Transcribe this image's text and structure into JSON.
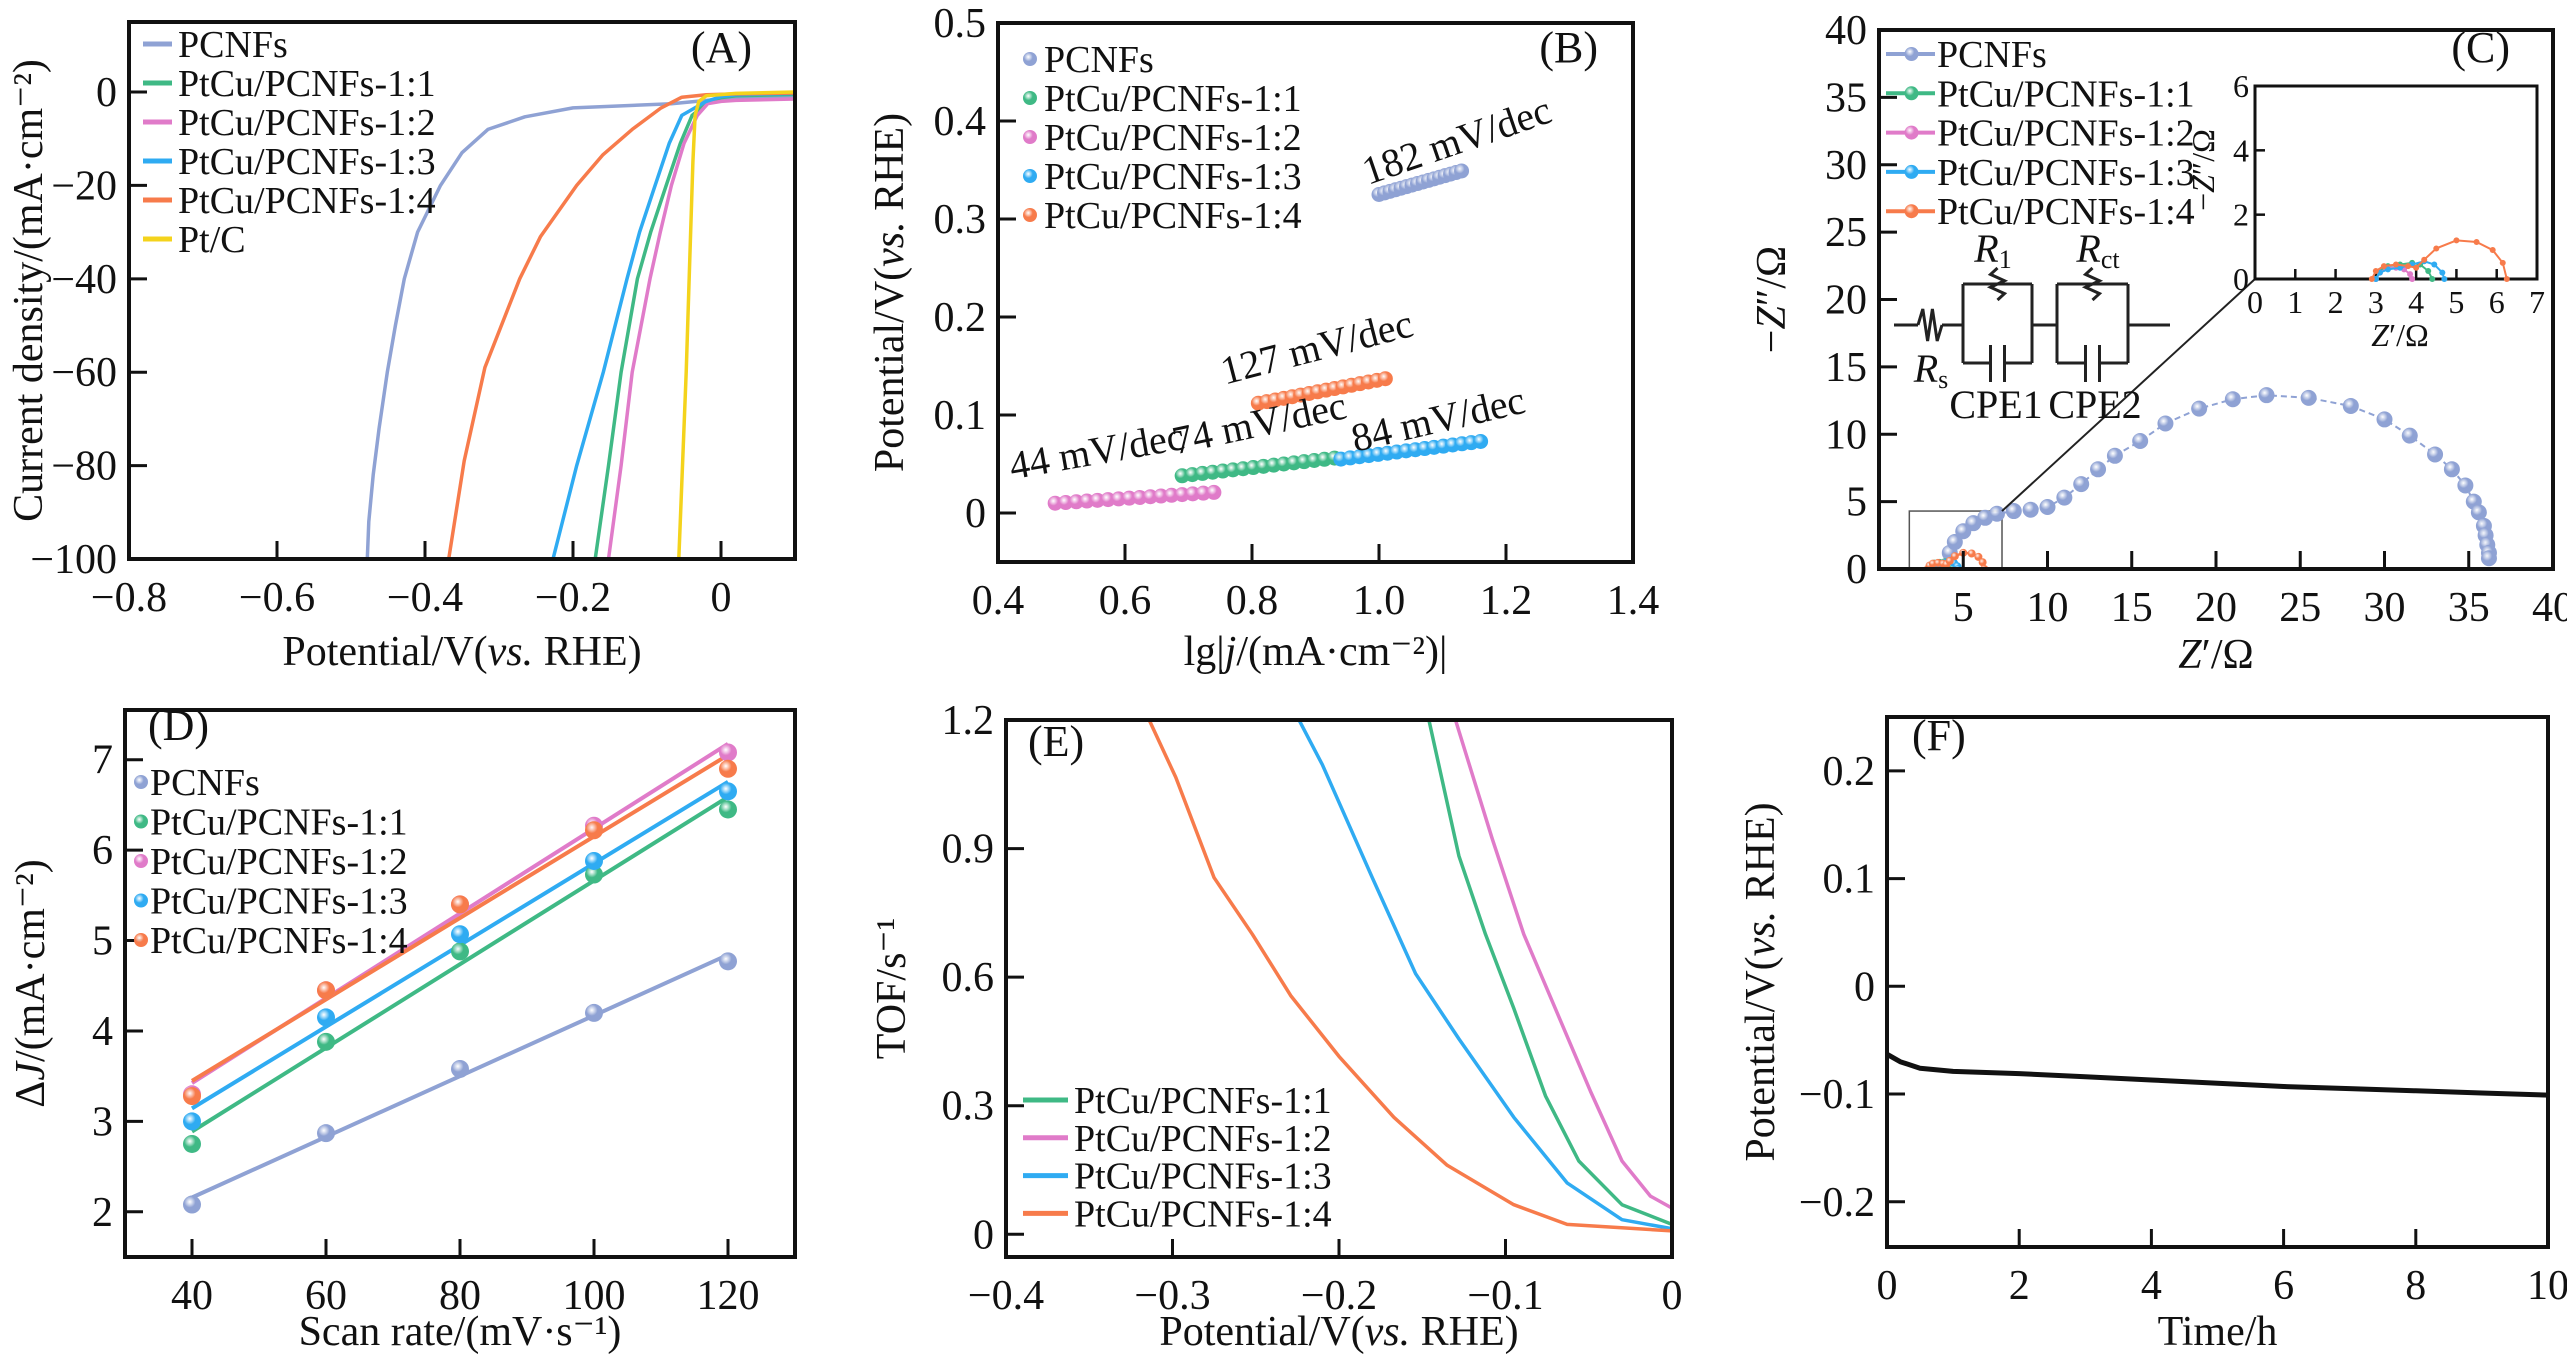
{
  "colors": {
    "PCNFs": "#8fa2d4",
    "PtCu/PCNFs-1:1": "#3fb985",
    "PtCu/PCNFs-1:2": "#e07bc9",
    "PtCu/PCNFs-1:3": "#2fabf2",
    "PtCu/PCNFs-1:4": "#f77b4b",
    "Pt/C": "#f4d31c"
  },
  "chart_data": [
    {
      "panel_label": "(A)",
      "type": "line",
      "xlabel": [
        {
          "t": "Potential/V("
        },
        {
          "t": "vs.",
          "i": true
        },
        {
          "t": " RHE)"
        }
      ],
      "ylabel": [
        {
          "t": "Current density/(mA·cm⁻²)"
        }
      ],
      "xlim": [
        -0.8,
        0.1
      ],
      "ylim": [
        -100,
        15
      ],
      "xticks": [
        -0.8,
        -0.6,
        -0.4,
        -0.2,
        0
      ],
      "xtick_labels": [
        "−0.8",
        "−0.6",
        "−0.4",
        "−0.2",
        "0"
      ],
      "yticks": [
        -100,
        -80,
        -60,
        -40,
        -20,
        0
      ],
      "ytick_labels": [
        "−100",
        "−80",
        "−60",
        "−40",
        "−20",
        "0"
      ],
      "legend": "top-left",
      "series": [
        {
          "name": "PCNFs",
          "color": "#8fa2d4",
          "x": [
            0.1,
            0,
            -0.067,
            -0.2,
            -0.265,
            -0.315,
            -0.35,
            -0.379,
            -0.41,
            -0.428,
            -0.44,
            -0.451,
            -0.462,
            -0.47,
            -0.476,
            -0.478
          ],
          "y": [
            -0.8,
            -1.5,
            -2.5,
            -3.4,
            -5.3,
            -8,
            -13,
            -20,
            -30,
            -40,
            -50,
            -60,
            -72,
            -82,
            -92,
            -100
          ]
        },
        {
          "name": "PtCu/PCNFs-1:1",
          "color": "#3fb985",
          "x": [
            0.1,
            0.02,
            0,
            -0.02,
            -0.039,
            -0.055,
            -0.074,
            -0.095,
            -0.113,
            -0.135,
            -0.152,
            -0.17
          ],
          "y": [
            -0.5,
            -0.8,
            -1.2,
            -2.5,
            -5,
            -11,
            -20,
            -30,
            -40,
            -60,
            -80,
            -100
          ]
        },
        {
          "name": "PtCu/PCNFs-1:2",
          "color": "#e07bc9",
          "x": [
            0.1,
            0.02,
            0,
            -0.018,
            -0.032,
            -0.05,
            -0.067,
            -0.082,
            -0.096,
            -0.12,
            -0.135,
            -0.152
          ],
          "y": [
            -1.5,
            -1.8,
            -2,
            -2.5,
            -5,
            -11,
            -20,
            -30,
            -40,
            -60,
            -80,
            -100
          ]
        },
        {
          "name": "PtCu/PCNFs-1:3",
          "color": "#2fabf2",
          "x": [
            0.1,
            0.02,
            0,
            -0.02,
            -0.053,
            -0.07,
            -0.089,
            -0.11,
            -0.127,
            -0.159,
            -0.195,
            -0.227
          ],
          "y": [
            -0.3,
            -0.6,
            -1,
            -2,
            -5,
            -11,
            -20,
            -30,
            -40,
            -60,
            -80,
            -100
          ]
        },
        {
          "name": "PtCu/PCNFs-1:4",
          "color": "#f77b4b",
          "x": [
            0.1,
            0.02,
            -0.02,
            -0.053,
            -0.081,
            -0.12,
            -0.16,
            -0.195,
            -0.244,
            -0.272,
            -0.319,
            -0.347,
            -0.368
          ],
          "y": [
            -0.2,
            -0.4,
            -0.6,
            -1.1,
            -3.4,
            -8,
            -13.5,
            -20,
            -31,
            -40,
            -59,
            -79,
            -100
          ]
        },
        {
          "name": "Pt/C",
          "color": "#f4d31c",
          "x": [
            0.1,
            0.02,
            -0.02,
            -0.03,
            -0.035,
            -0.038,
            -0.042,
            -0.047,
            -0.052,
            -0.057
          ],
          "y": [
            0,
            -0.3,
            -0.8,
            -2,
            -5,
            -15,
            -35,
            -60,
            -80,
            -100
          ]
        }
      ]
    },
    {
      "panel_label": "(B)",
      "type": "scatter",
      "xlabel": [
        {
          "t": "lg|"
        },
        {
          "t": "j",
          "i": true
        },
        {
          "t": "/(mA·cm⁻²)|"
        }
      ],
      "ylabel": [
        {
          "t": "Potential/V("
        },
        {
          "t": "vs.",
          "i": true
        },
        {
          "t": " RHE)"
        }
      ],
      "xlim": [
        0.4,
        1.4
      ],
      "ylim": [
        -0.05,
        0.5
      ],
      "xticks": [
        0.4,
        0.6,
        0.8,
        1.0,
        1.2,
        1.4
      ],
      "xtick_labels": [
        "0.4",
        "0.6",
        "0.8",
        "1.0",
        "1.2",
        "1.4"
      ],
      "yticks": [
        0,
        0.1,
        0.2,
        0.3,
        0.4,
        0.5
      ],
      "ytick_labels": [
        "0",
        "0.1",
        "0.2",
        "0.3",
        "0.4",
        "0.5"
      ],
      "legend": "top-left",
      "series": [
        {
          "name": "PCNFs",
          "color": "#8fa2d4",
          "x_range": [
            1.0,
            1.13
          ],
          "y_range": [
            0.325,
            0.349
          ],
          "annotation": "182 mV/dec"
        },
        {
          "name": "PtCu/PCNFs-1:1",
          "color": "#3fb985",
          "x_range": [
            0.69,
            0.93
          ],
          "y_range": [
            0.038,
            0.056
          ],
          "annotation": "74 mV/dec"
        },
        {
          "name": "PtCu/PCNFs-1:2",
          "color": "#e07bc9",
          "x_range": [
            0.49,
            0.74
          ],
          "y_range": [
            0.01,
            0.021
          ],
          "annotation": "44 mV/dec"
        },
        {
          "name": "PtCu/PCNFs-1:3",
          "color": "#2fabf2",
          "x_range": [
            0.94,
            1.16
          ],
          "y_range": [
            0.055,
            0.073
          ],
          "annotation": "84 mV/dec"
        },
        {
          "name": "PtCu/PCNFs-1:4",
          "color": "#f77b4b",
          "x_range": [
            0.81,
            1.01
          ],
          "y_range": [
            0.112,
            0.137
          ],
          "annotation": "127 mV/dec"
        }
      ]
    },
    {
      "panel_label": "(C)",
      "type": "scatter",
      "xlabel": [
        {
          "t": "Z",
          "i": true
        },
        {
          "t": "′/Ω"
        }
      ],
      "ylabel": [
        {
          "t": "−"
        },
        {
          "t": "Z",
          "i": true
        },
        {
          "t": "″/Ω"
        }
      ],
      "xlim": [
        0,
        40
      ],
      "ylim": [
        0,
        40
      ],
      "xticks": [
        5,
        10,
        15,
        20,
        25,
        30,
        35,
        40
      ],
      "xtick_labels": [
        "5",
        "10",
        "15",
        "20",
        "25",
        "30",
        "35",
        "40"
      ],
      "yticks": [
        0,
        5,
        10,
        15,
        20,
        25,
        30,
        35,
        40
      ],
      "ytick_labels": [
        "0",
        "5",
        "10",
        "15",
        "20",
        "25",
        "30",
        "35",
        "40"
      ],
      "legend": "top-left",
      "inset": {
        "xlim": [
          0,
          7
        ],
        "ylim": [
          0,
          6
        ],
        "xticks": [
          0,
          1,
          2,
          3,
          4,
          5,
          6,
          7
        ],
        "xtick_labels": [
          "0",
          "1",
          "2",
          "3",
          "4",
          "5",
          "6",
          "7"
        ],
        "yticks": [
          0,
          2,
          4,
          6
        ],
        "ytick_labels": [
          "0",
          "2",
          "4",
          "6"
        ],
        "xlabel": [
          {
            "t": "Z",
            "i": true
          },
          {
            "t": "′/Ω"
          }
        ],
        "ylabel": [
          {
            "t": "−"
          },
          {
            "t": "Z",
            "i": true
          },
          {
            "t": "″/Ω"
          }
        ],
        "zoom_region": {
          "x": [
            1.8,
            7.3
          ],
          "y": [
            0,
            4.3
          ]
        }
      },
      "circuit": {
        "rs": {
          "r": "R",
          "sub": "s"
        },
        "r1": {
          "r": "R",
          "sub": "1"
        },
        "rct": {
          "r": "R",
          "sub": "ct"
        },
        "cpe1": "CPE1",
        "cpe2": "CPE2"
      },
      "series": [
        {
          "name": "PCNFs",
          "color": "#8fa2d4",
          "x": [
            4.2,
            4.5,
            5,
            5.6,
            6.3,
            7,
            8,
            9,
            10,
            11,
            12,
            13,
            14,
            15.5,
            17,
            19,
            21,
            23,
            25.5,
            28,
            30,
            31.5,
            33,
            34,
            34.8,
            35.3,
            35.6,
            35.9,
            36,
            36.1,
            36.2,
            36.2
          ],
          "y": [
            1.2,
            2,
            2.8,
            3.4,
            3.8,
            4.1,
            4.3,
            4.4,
            4.6,
            5.3,
            6.3,
            7.4,
            8.4,
            9.5,
            10.8,
            11.9,
            12.6,
            12.9,
            12.7,
            12.1,
            11.1,
            9.9,
            8.5,
            7.4,
            6.2,
            5,
            4.2,
            3.2,
            2.5,
            1.8,
            1.2,
            0.8
          ]
        },
        {
          "name": "PtCu/PCNFs-1:1",
          "color": "#3fb985",
          "x": [
            3,
            3.1,
            3.3,
            3.6,
            3.9,
            4.1,
            4.3,
            4.4
          ],
          "y": [
            0,
            0.25,
            0.4,
            0.45,
            0.5,
            0.45,
            0.25,
            0
          ]
        },
        {
          "name": "PtCu/PCNFs-1:2",
          "color": "#e07bc9",
          "x": [
            3,
            3.1,
            3.3,
            3.5,
            3.7,
            3.85,
            3.9
          ],
          "y": [
            0,
            0.2,
            0.35,
            0.35,
            0.3,
            0.15,
            0
          ]
        },
        {
          "name": "PtCu/PCNFs-1:3",
          "color": "#2fabf2",
          "x": [
            3,
            3.1,
            3.3,
            3.6,
            3.9,
            4.2,
            4.45,
            4.65,
            4.7
          ],
          "y": [
            0,
            0.2,
            0.3,
            0.35,
            0.45,
            0.55,
            0.45,
            0.2,
            0
          ]
        },
        {
          "name": "PtCu/PCNFs-1:4",
          "color": "#f77b4b",
          "x": [
            2.9,
            3.0,
            3.2,
            3.5,
            3.8,
            4.0,
            4.2,
            4.5,
            5,
            5.5,
            5.9,
            6.15,
            6.25
          ],
          "y": [
            0,
            0.25,
            0.4,
            0.45,
            0.4,
            0.35,
            0.6,
            0.95,
            1.2,
            1.15,
            0.9,
            0.5,
            0
          ]
        }
      ]
    },
    {
      "panel_label": "(D)",
      "type": "scatter",
      "xlabel": [
        {
          "t": "Scan rate/(mV·s⁻¹)"
        }
      ],
      "ylabel": [
        {
          "t": "Δ"
        },
        {
          "t": "J",
          "i": true
        },
        {
          "t": "/(mA·cm⁻²)"
        }
      ],
      "xlim": [
        30,
        130
      ],
      "ylim": [
        1.5,
        7.55
      ],
      "xticks": [
        40,
        60,
        80,
        100,
        120
      ],
      "xtick_labels": [
        "40",
        "60",
        "80",
        "100",
        "120"
      ],
      "yticks": [
        2,
        3,
        4,
        5,
        6,
        7
      ],
      "ytick_labels": [
        "2",
        "3",
        "4",
        "5",
        "6",
        "7"
      ],
      "legend": "top-left",
      "linear_fit": true,
      "series": [
        {
          "name": "PCNFs",
          "color": "#8fa2d4",
          "x": [
            40,
            60,
            80,
            100,
            120
          ],
          "y": [
            2.08,
            2.87,
            3.58,
            4.2,
            4.77
          ]
        },
        {
          "name": "PtCu/PCNFs-1:1",
          "color": "#3fb985",
          "x": [
            40,
            60,
            80,
            100,
            120
          ],
          "y": [
            2.75,
            3.88,
            4.88,
            5.73,
            6.45
          ]
        },
        {
          "name": "PtCu/PCNFs-1:2",
          "color": "#e07bc9",
          "x": [
            40,
            60,
            80,
            100,
            120
          ],
          "y": [
            3.3,
            4.45,
            5.4,
            6.27,
            7.08
          ]
        },
        {
          "name": "PtCu/PCNFs-1:3",
          "color": "#2fabf2",
          "x": [
            40,
            60,
            80,
            100,
            120
          ],
          "y": [
            3.0,
            4.15,
            5.07,
            5.88,
            6.65
          ]
        },
        {
          "name": "PtCu/PCNFs-1:4",
          "color": "#f77b4b",
          "x": [
            40,
            60,
            80,
            100,
            120
          ],
          "y": [
            3.28,
            4.45,
            5.4,
            6.22,
            6.9
          ]
        }
      ]
    },
    {
      "panel_label": "(E)",
      "type": "line",
      "xlabel": [
        {
          "t": "Potential/V("
        },
        {
          "t": "vs.",
          "i": true
        },
        {
          "t": " RHE)"
        }
      ],
      "ylabel": [
        {
          "t": "TOF/s⁻¹"
        }
      ],
      "xlim": [
        -0.4,
        0
      ],
      "ylim": [
        -0.053,
        1.2
      ],
      "xticks": [
        -0.4,
        -0.3,
        -0.2,
        -0.1,
        0
      ],
      "xtick_labels": [
        "−0.4",
        "−0.3",
        "−0.2",
        "−0.1",
        "0"
      ],
      "yticks": [
        0,
        0.3,
        0.6,
        0.9,
        1.2
      ],
      "ytick_labels": [
        "0",
        "0.3",
        "0.6",
        "0.9",
        "1.2"
      ],
      "legend": "bottom-left",
      "series": [
        {
          "name": "PtCu/PCNFs-1:1",
          "color": "#3fb985",
          "x": [
            -0.146,
            -0.128,
            -0.112,
            -0.095,
            -0.076,
            -0.056,
            -0.03,
            0
          ],
          "y": [
            1.2,
            0.883,
            0.7,
            0.527,
            0.323,
            0.171,
            0.069,
            0.023
          ]
        },
        {
          "name": "PtCu/PCNFs-1:2",
          "color": "#e07bc9",
          "x": [
            -0.13,
            -0.108,
            -0.089,
            -0.069,
            -0.049,
            -0.03,
            -0.013,
            0
          ],
          "y": [
            1.2,
            0.923,
            0.7,
            0.517,
            0.334,
            0.171,
            0.089,
            0.061
          ]
        },
        {
          "name": "PtCu/PCNFs-1:3",
          "color": "#2fabf2",
          "x": [
            -0.224,
            -0.21,
            -0.18,
            -0.154,
            -0.128,
            -0.095,
            -0.063,
            -0.03,
            0
          ],
          "y": [
            1.2,
            1.096,
            0.832,
            0.608,
            0.456,
            0.273,
            0.12,
            0.034,
            0.013
          ]
        },
        {
          "name": "PtCu/PCNFs-1:4",
          "color": "#f77b4b",
          "x": [
            -0.314,
            -0.298,
            -0.275,
            -0.252,
            -0.229,
            -0.2,
            -0.167,
            -0.135,
            -0.095,
            -0.063,
            0
          ],
          "y": [
            1.2,
            1.066,
            0.832,
            0.7,
            0.557,
            0.415,
            0.273,
            0.161,
            0.069,
            0.023,
            0.008
          ]
        }
      ]
    },
    {
      "panel_label": "(F)",
      "type": "line",
      "xlabel": [
        {
          "t": "Time/h"
        }
      ],
      "ylabel": [
        {
          "t": "Potential/V("
        },
        {
          "t": "vs.",
          "i": true
        },
        {
          "t": " RHE)"
        }
      ],
      "xlim": [
        0,
        10
      ],
      "ylim": [
        -0.242,
        0.25
      ],
      "xticks": [
        0,
        2,
        4,
        6,
        8,
        10
      ],
      "xtick_labels": [
        "0",
        "2",
        "4",
        "6",
        "8",
        "10"
      ],
      "yticks": [
        -0.2,
        -0.1,
        0,
        0.1,
        0.2
      ],
      "ytick_labels": [
        "−0.2",
        "−0.1",
        "0",
        "0.1",
        "0.2"
      ],
      "series": [
        {
          "color": "#111111",
          "x": [
            0,
            0.2,
            0.5,
            1,
            2,
            3,
            4,
            5,
            6,
            7,
            8,
            9,
            10
          ],
          "y": [
            -0.063,
            -0.07,
            -0.076,
            -0.079,
            -0.081,
            -0.084,
            -0.087,
            -0.09,
            -0.093,
            -0.095,
            -0.097,
            -0.099,
            -0.101
          ]
        }
      ]
    }
  ]
}
